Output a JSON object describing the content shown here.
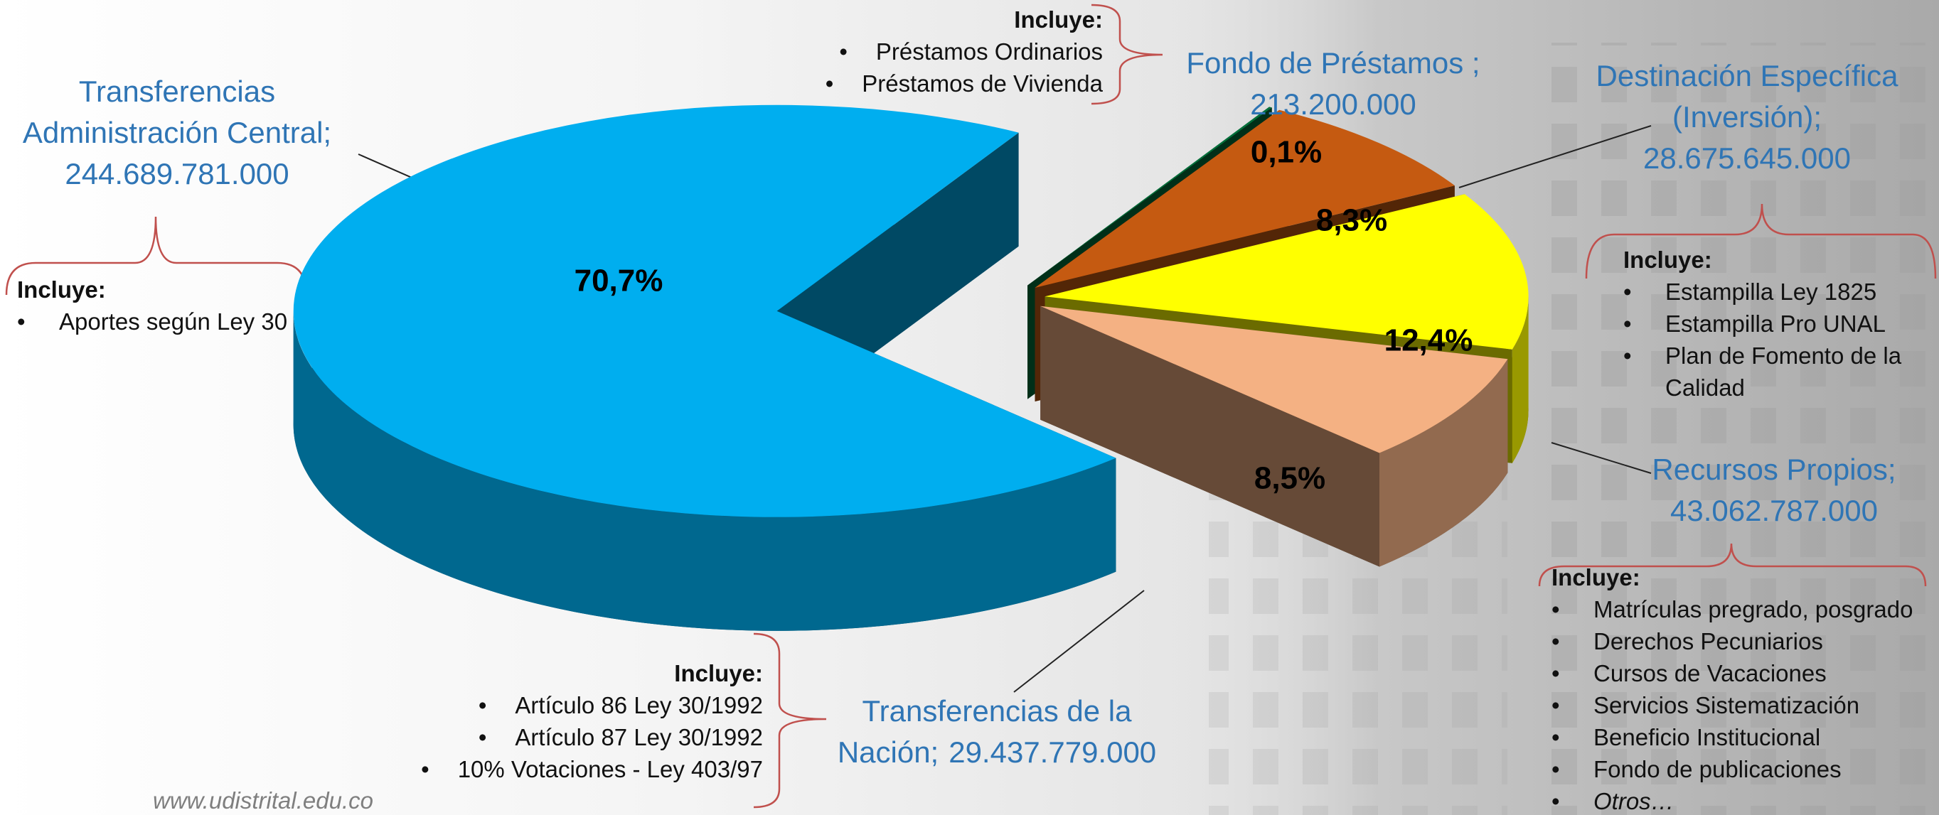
{
  "chart_data": {
    "type": "pie",
    "categories": [
      "Fondo de Préstamos ;",
      "Destinación Específica (Inversión);",
      "Recursos Propios;",
      "Transferencias de la Nación;",
      "Transferencias Administración Central;"
    ],
    "amounts": [
      213200000,
      28675645000,
      43062787000,
      29437779000,
      244689781000
    ],
    "amount_labels": [
      "213.200.000",
      "28.675.645.000",
      "43.062.787.000",
      "29.437.779.000",
      "244.689.781.000"
    ],
    "values": [
      0.1,
      8.3,
      12.4,
      8.5,
      70.7
    ],
    "value_labels": [
      "0,1%",
      "8,3%",
      "12,4%",
      "8,5%",
      "70,7%"
    ],
    "colors": [
      "#00703a",
      "#c55a11",
      "#ffff00",
      "#f4b183",
      "#00aeef"
    ],
    "notes": [
      {
        "heading": "Incluye:",
        "items": [
          "Préstamos Ordinarios",
          "Préstamos de Vivienda"
        ]
      },
      {
        "heading": "Incluye:",
        "items": [
          "Estampilla Ley 1825",
          "Estampilla Pro UNAL",
          "Plan de Fomento de la Calidad"
        ]
      },
      {
        "heading": "Incluye:",
        "items": [
          "Matrículas pregrado, posgrado",
          "Derechos Pecuniarios",
          "Cursos de Vacaciones",
          "Servicios Sistematización",
          "Beneficio Institucional",
          "Fondo de publicaciones",
          "Otros…"
        ]
      },
      {
        "heading": "Incluye:",
        "items": [
          "Artículo 86 Ley 30/1992",
          "Artículo 87 Ley 30/1992",
          "10% Votaciones - Ley 403/97"
        ]
      },
      {
        "heading": "Incluye:",
        "items": [
          "Aportes según Ley 30"
        ]
      }
    ]
  },
  "footer": "www.udistrital.edu.co"
}
